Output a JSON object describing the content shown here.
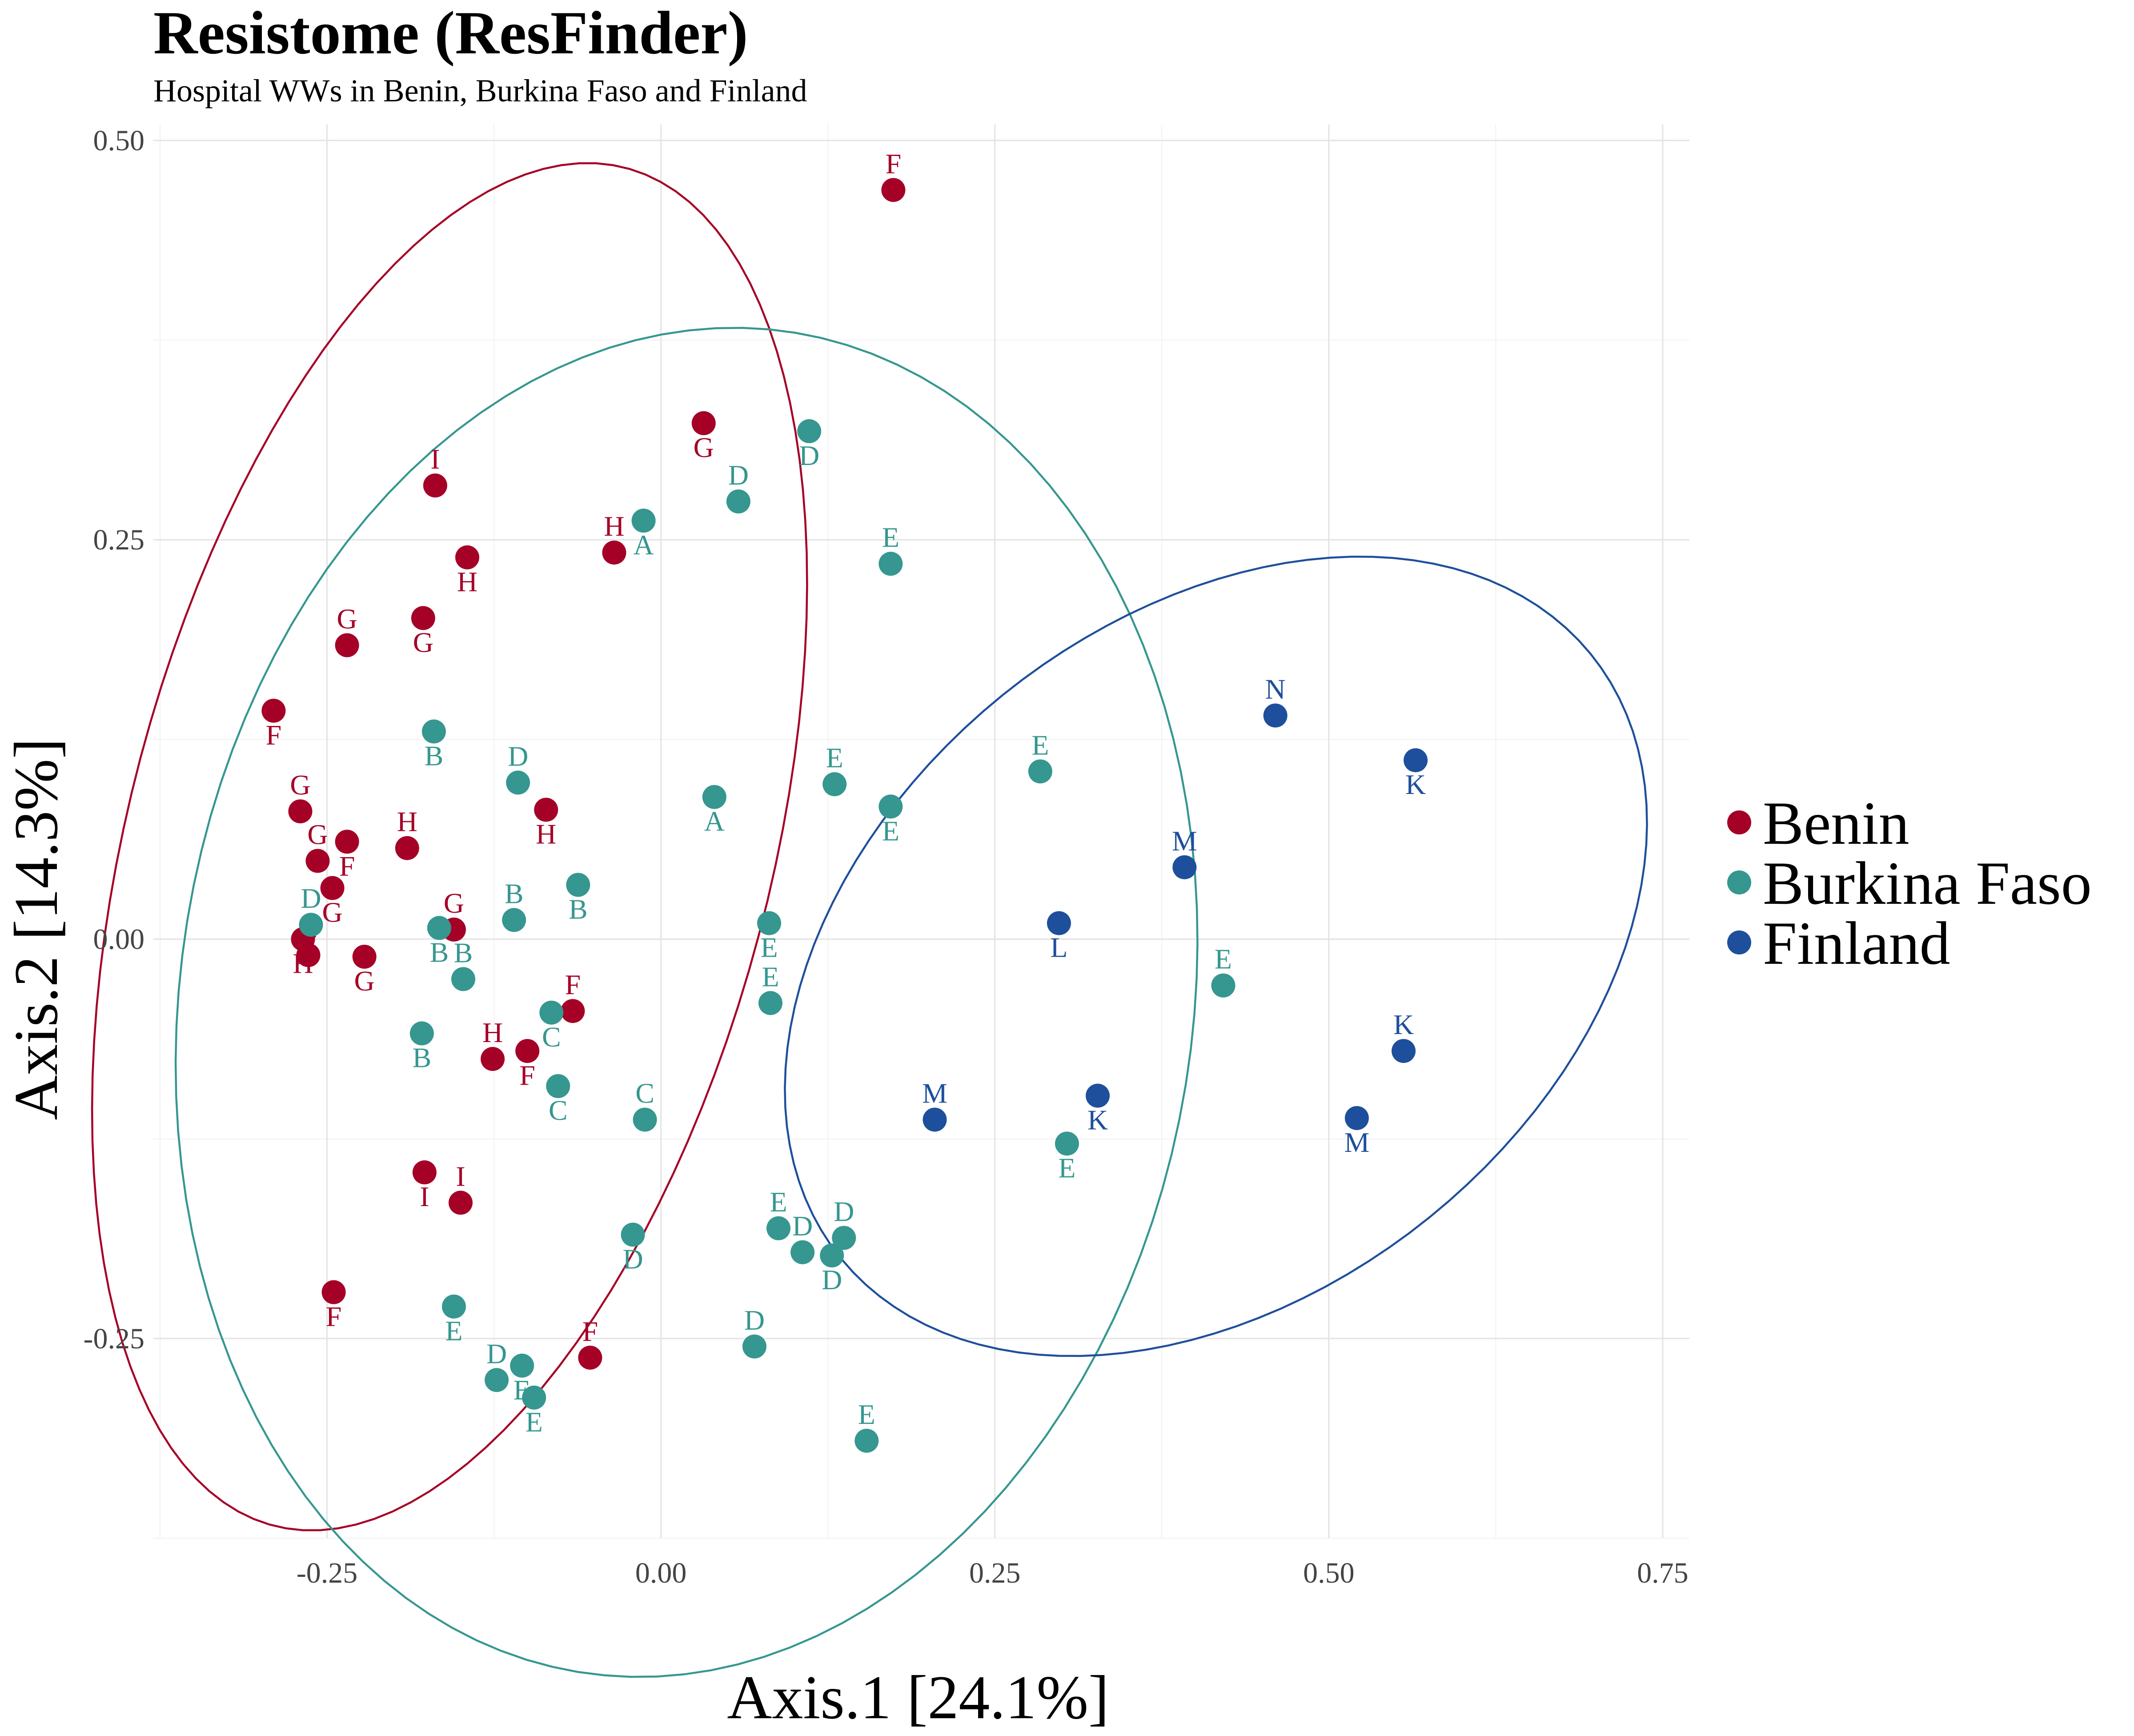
{
  "chart_data": {
    "type": "scatter",
    "title": "Resistome (ResFinder)",
    "subtitle": "Hospital WWs in Benin, Burkina Faso and Finland",
    "xlabel": "Axis.1   [24.1%]",
    "ylabel": "Axis.2   [14.3%]",
    "xlim": [
      -0.38,
      0.77
    ],
    "ylim": [
      -0.375,
      0.51
    ],
    "x_ticks": [
      -0.25,
      0.0,
      0.25,
      0.5,
      0.75
    ],
    "x_tick_labels": [
      "-0.25",
      "0.00",
      "0.25",
      "0.50",
      "0.75"
    ],
    "y_ticks": [
      -0.25,
      0.0,
      0.25,
      0.5
    ],
    "y_tick_labels": [
      "-0.25",
      "0.00",
      "0.25",
      "0.50"
    ],
    "grid": true,
    "legend_position": "right",
    "series": [
      {
        "name": "Benin",
        "color": "#a50026",
        "points": [
          {
            "x": 0.174,
            "y": 0.469,
            "label": "F"
          },
          {
            "x": 0.032,
            "y": 0.323,
            "label": "G"
          },
          {
            "x": -0.169,
            "y": 0.284,
            "label": "I"
          },
          {
            "x": -0.145,
            "y": 0.239,
            "label": "H"
          },
          {
            "x": -0.035,
            "y": 0.242,
            "label": "H"
          },
          {
            "x": -0.178,
            "y": 0.201,
            "label": "G"
          },
          {
            "x": -0.235,
            "y": 0.184,
            "label": "G"
          },
          {
            "x": -0.29,
            "y": 0.143,
            "label": "F"
          },
          {
            "x": -0.27,
            "y": 0.08,
            "label": "G"
          },
          {
            "x": -0.235,
            "y": 0.061,
            "label": "F"
          },
          {
            "x": -0.257,
            "y": 0.049,
            "label": "G"
          },
          {
            "x": -0.246,
            "y": 0.032,
            "label": "G"
          },
          {
            "x": -0.19,
            "y": 0.057,
            "label": "H"
          },
          {
            "x": -0.086,
            "y": 0.081,
            "label": "H"
          },
          {
            "x": -0.155,
            "y": 0.006,
            "label": "G"
          },
          {
            "x": -0.268,
            "y": 0.0,
            "label": "H"
          },
          {
            "x": -0.264,
            "y": -0.01,
            "label": "G"
          },
          {
            "x": -0.222,
            "y": -0.011,
            "label": "G"
          },
          {
            "x": -0.066,
            "y": -0.045,
            "label": "F"
          },
          {
            "x": -0.1,
            "y": -0.07,
            "label": "F"
          },
          {
            "x": -0.126,
            "y": -0.075,
            "label": "H"
          },
          {
            "x": -0.177,
            "y": -0.146,
            "label": "I"
          },
          {
            "x": -0.15,
            "y": -0.165,
            "label": "I"
          },
          {
            "x": -0.245,
            "y": -0.221,
            "label": "F"
          },
          {
            "x": -0.053,
            "y": -0.262,
            "label": "F"
          }
        ]
      },
      {
        "name": "Burkina Faso",
        "color": "#35978f",
        "points": [
          {
            "x": 0.111,
            "y": 0.318,
            "label": "D"
          },
          {
            "x": 0.058,
            "y": 0.274,
            "label": "D"
          },
          {
            "x": -0.013,
            "y": 0.262,
            "label": "A"
          },
          {
            "x": 0.172,
            "y": 0.235,
            "label": "E"
          },
          {
            "x": -0.17,
            "y": 0.13,
            "label": "B"
          },
          {
            "x": -0.107,
            "y": 0.098,
            "label": "D"
          },
          {
            "x": 0.04,
            "y": 0.089,
            "label": "A"
          },
          {
            "x": 0.13,
            "y": 0.097,
            "label": "E"
          },
          {
            "x": 0.172,
            "y": 0.083,
            "label": "E"
          },
          {
            "x": 0.284,
            "y": 0.105,
            "label": "E"
          },
          {
            "x": -0.062,
            "y": 0.034,
            "label": "B"
          },
          {
            "x": -0.11,
            "y": 0.012,
            "label": "B"
          },
          {
            "x": -0.166,
            "y": 0.007,
            "label": "B"
          },
          {
            "x": -0.262,
            "y": 0.009,
            "label": "D"
          },
          {
            "x": 0.081,
            "y": 0.01,
            "label": "E"
          },
          {
            "x": -0.148,
            "y": -0.025,
            "label": "B"
          },
          {
            "x": -0.082,
            "y": -0.046,
            "label": "C"
          },
          {
            "x": 0.082,
            "y": -0.04,
            "label": "E"
          },
          {
            "x": -0.179,
            "y": -0.059,
            "label": "B"
          },
          {
            "x": 0.421,
            "y": -0.029,
            "label": "E"
          },
          {
            "x": -0.077,
            "y": -0.092,
            "label": "C"
          },
          {
            "x": -0.012,
            "y": -0.113,
            "label": "C"
          },
          {
            "x": 0.304,
            "y": -0.128,
            "label": "E"
          },
          {
            "x": 0.088,
            "y": -0.181,
            "label": "E"
          },
          {
            "x": -0.021,
            "y": -0.185,
            "label": "D"
          },
          {
            "x": 0.106,
            "y": -0.196,
            "label": "D"
          },
          {
            "x": 0.128,
            "y": -0.198,
            "label": "D"
          },
          {
            "x": 0.137,
            "y": -0.187,
            "label": "D"
          },
          {
            "x": -0.155,
            "y": -0.23,
            "label": "E"
          },
          {
            "x": 0.07,
            "y": -0.255,
            "label": "D"
          },
          {
            "x": -0.104,
            "y": -0.267,
            "label": "E"
          },
          {
            "x": -0.123,
            "y": -0.276,
            "label": "D"
          },
          {
            "x": -0.095,
            "y": -0.287,
            "label": "E"
          },
          {
            "x": 0.154,
            "y": -0.314,
            "label": "E"
          }
        ]
      },
      {
        "name": "Finland",
        "color": "#1e4f9c",
        "points": [
          {
            "x": 0.46,
            "y": 0.14,
            "label": "N"
          },
          {
            "x": 0.565,
            "y": 0.112,
            "label": "K"
          },
          {
            "x": 0.392,
            "y": 0.045,
            "label": "M"
          },
          {
            "x": 0.298,
            "y": 0.01,
            "label": "L"
          },
          {
            "x": 0.556,
            "y": -0.07,
            "label": "K"
          },
          {
            "x": 0.327,
            "y": -0.098,
            "label": "K"
          },
          {
            "x": 0.205,
            "y": -0.113,
            "label": "M"
          },
          {
            "x": 0.521,
            "y": -0.112,
            "label": "M"
          }
        ]
      }
    ]
  }
}
